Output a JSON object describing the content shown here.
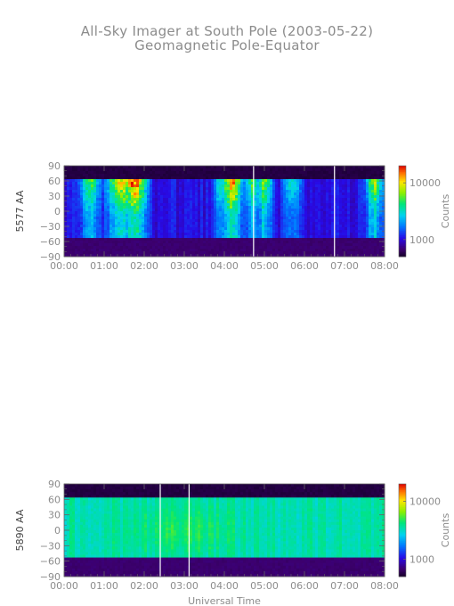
{
  "header": {
    "title": "All-Sky Imager at South Pole (2003-05-22)",
    "subtitle": "Geomagnetic Pole-Equator"
  },
  "chart_data": [
    {
      "type": "heatmap",
      "ylabel": "5577 AA",
      "xlabel": "",
      "x_ticks": [
        "00:00",
        "01:00",
        "02:00",
        "03:00",
        "04:00",
        "05:00",
        "06:00",
        "07:00",
        "08:00"
      ],
      "x_range_hours": [
        0,
        8
      ],
      "y_ticks": [
        "90",
        "60",
        "30",
        "0",
        "−30",
        "−60",
        "−90"
      ],
      "y_range": [
        -90,
        90
      ],
      "valid_lat_range": [
        -55,
        62
      ],
      "colorbar": {
        "label": "Counts",
        "ticks": [
          "10000",
          "1000"
        ],
        "scale": "log",
        "range": [
          500,
          20000
        ]
      },
      "gap_lines_hours": [
        4.73,
        6.75
      ],
      "background_counts": 900,
      "events": [
        {
          "t_hours": 0.65,
          "intensity": 0.45,
          "width_hours": 0.35
        },
        {
          "t_hours": 1.45,
          "intensity": 0.7,
          "width_hours": 0.5
        },
        {
          "t_hours": 1.75,
          "intensity": 0.85,
          "width_hours": 0.35
        },
        {
          "t_hours": 1.95,
          "intensity": 0.55,
          "width_hours": 0.2
        },
        {
          "t_hours": 3.9,
          "intensity": 0.35,
          "width_hours": 0.2
        },
        {
          "t_hours": 4.2,
          "intensity": 0.75,
          "width_hours": 0.35
        },
        {
          "t_hours": 4.7,
          "intensity": 0.45,
          "width_hours": 0.3
        },
        {
          "t_hours": 5.0,
          "intensity": 0.55,
          "width_hours": 0.25
        },
        {
          "t_hours": 5.7,
          "intensity": 0.35,
          "width_hours": 0.3
        },
        {
          "t_hours": 7.75,
          "intensity": 0.55,
          "width_hours": 0.3
        }
      ]
    },
    {
      "type": "heatmap",
      "ylabel": "5890 AA",
      "xlabel": "Universal Time",
      "x_ticks": [
        "00:00",
        "01:00",
        "02:00",
        "03:00",
        "04:00",
        "05:00",
        "06:00",
        "07:00",
        "08:00"
      ],
      "x_range_hours": [
        0,
        8
      ],
      "y_ticks": [
        "90",
        "60",
        "30",
        "0",
        "−30",
        "−60",
        "−90"
      ],
      "y_range": [
        -90,
        90
      ],
      "valid_lat_range": [
        -55,
        62
      ],
      "colorbar": {
        "label": "Counts",
        "ticks": [
          "10000",
          "1000"
        ],
        "scale": "log",
        "range": [
          500,
          20000
        ]
      },
      "gap_lines_hours": [
        2.4,
        3.12
      ],
      "background_counts": 3000,
      "events": []
    }
  ]
}
